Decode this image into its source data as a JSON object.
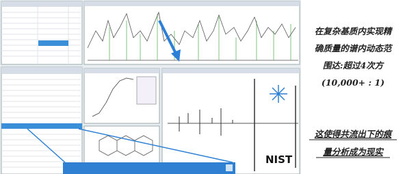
{
  "slide_text": {
    "claim_lines": [
      "在复杂基质内实现精",
      "确质量的谱内动态范",
      "围达:超过4次方"
    ],
    "ratio": "(10,000+ : 1)",
    "conclusion_lines": [
      "这使得共流出下的痕",
      "量分析成为现实"
    ]
  },
  "spectrum_label": "NIST"
}
